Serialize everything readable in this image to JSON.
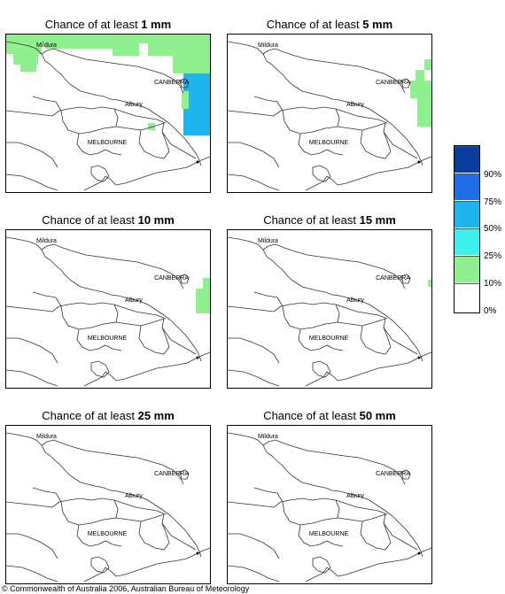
{
  "panels": [
    {
      "title_prefix": "Chance of at least",
      "amount": "1 mm",
      "coverage": "wide"
    },
    {
      "title_prefix": "Chance of at least",
      "amount": "5 mm",
      "coverage": "east"
    },
    {
      "title_prefix": "Chance of at least",
      "amount": "10 mm",
      "coverage": "coast"
    },
    {
      "title_prefix": "Chance of at least",
      "amount": "15 mm",
      "coverage": "spot"
    },
    {
      "title_prefix": "Chance of at least",
      "amount": "25 mm",
      "coverage": "none"
    },
    {
      "title_prefix": "Chance of at least",
      "amount": "50 mm",
      "coverage": "none"
    }
  ],
  "place_labels": {
    "mildura": "Mildura",
    "canberra": "CANBERRA",
    "albury": "Albury",
    "melbourne": "MELBOURNE"
  },
  "legend": {
    "labels": [
      "90%",
      "75%",
      "50%",
      "25%",
      "10%",
      "0%"
    ],
    "colors": [
      "#0a3e9c",
      "#1e6ee6",
      "#1eb4ee",
      "#3cf0f0",
      "#90f090",
      "#ffffff"
    ]
  },
  "footer": "© Commonwealth of Australia 2006, Australian Bureau of Meteorology"
}
